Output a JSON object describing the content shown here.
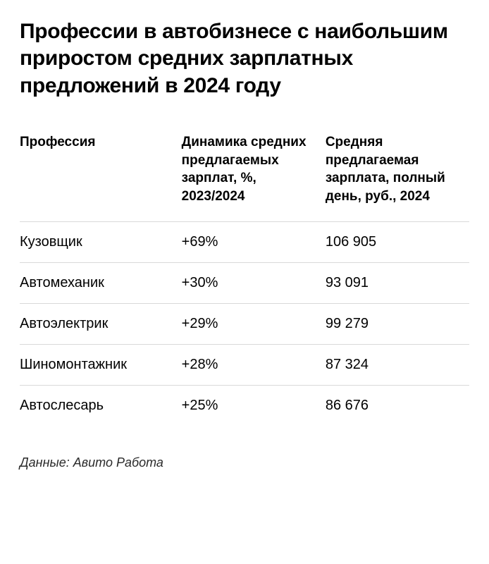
{
  "title": "Профессии в автобизнесе с наибольшим приростом средних зарплатных предложений в 2024 году",
  "table": {
    "columns": [
      "Профессия",
      "Динамика средних предлагаемых зарплат, %, 2023/2024",
      "Средняя предлагаемая зарплата, полный день, руб., 2024"
    ],
    "rows": [
      {
        "profession": "Кузовщик",
        "growth": "+69%",
        "salary": "106 905"
      },
      {
        "profession": "Автомеханик",
        "growth": "+30%",
        "salary": "93 091"
      },
      {
        "profession": "Автоэлектрик",
        "growth": "+29%",
        "salary": "99 279"
      },
      {
        "profession": "Шиномонтажник",
        "growth": "+28%",
        "salary": "87 324"
      },
      {
        "profession": "Автослесарь",
        "growth": "+25%",
        "salary": "86 676"
      }
    ],
    "border_color": "#d9d9d9",
    "header_fontsize": 19,
    "cell_fontsize": 20
  },
  "source": "Данные: Авито Работа",
  "background_color": "#ffffff",
  "text_color": "#000000",
  "title_fontsize": 30
}
